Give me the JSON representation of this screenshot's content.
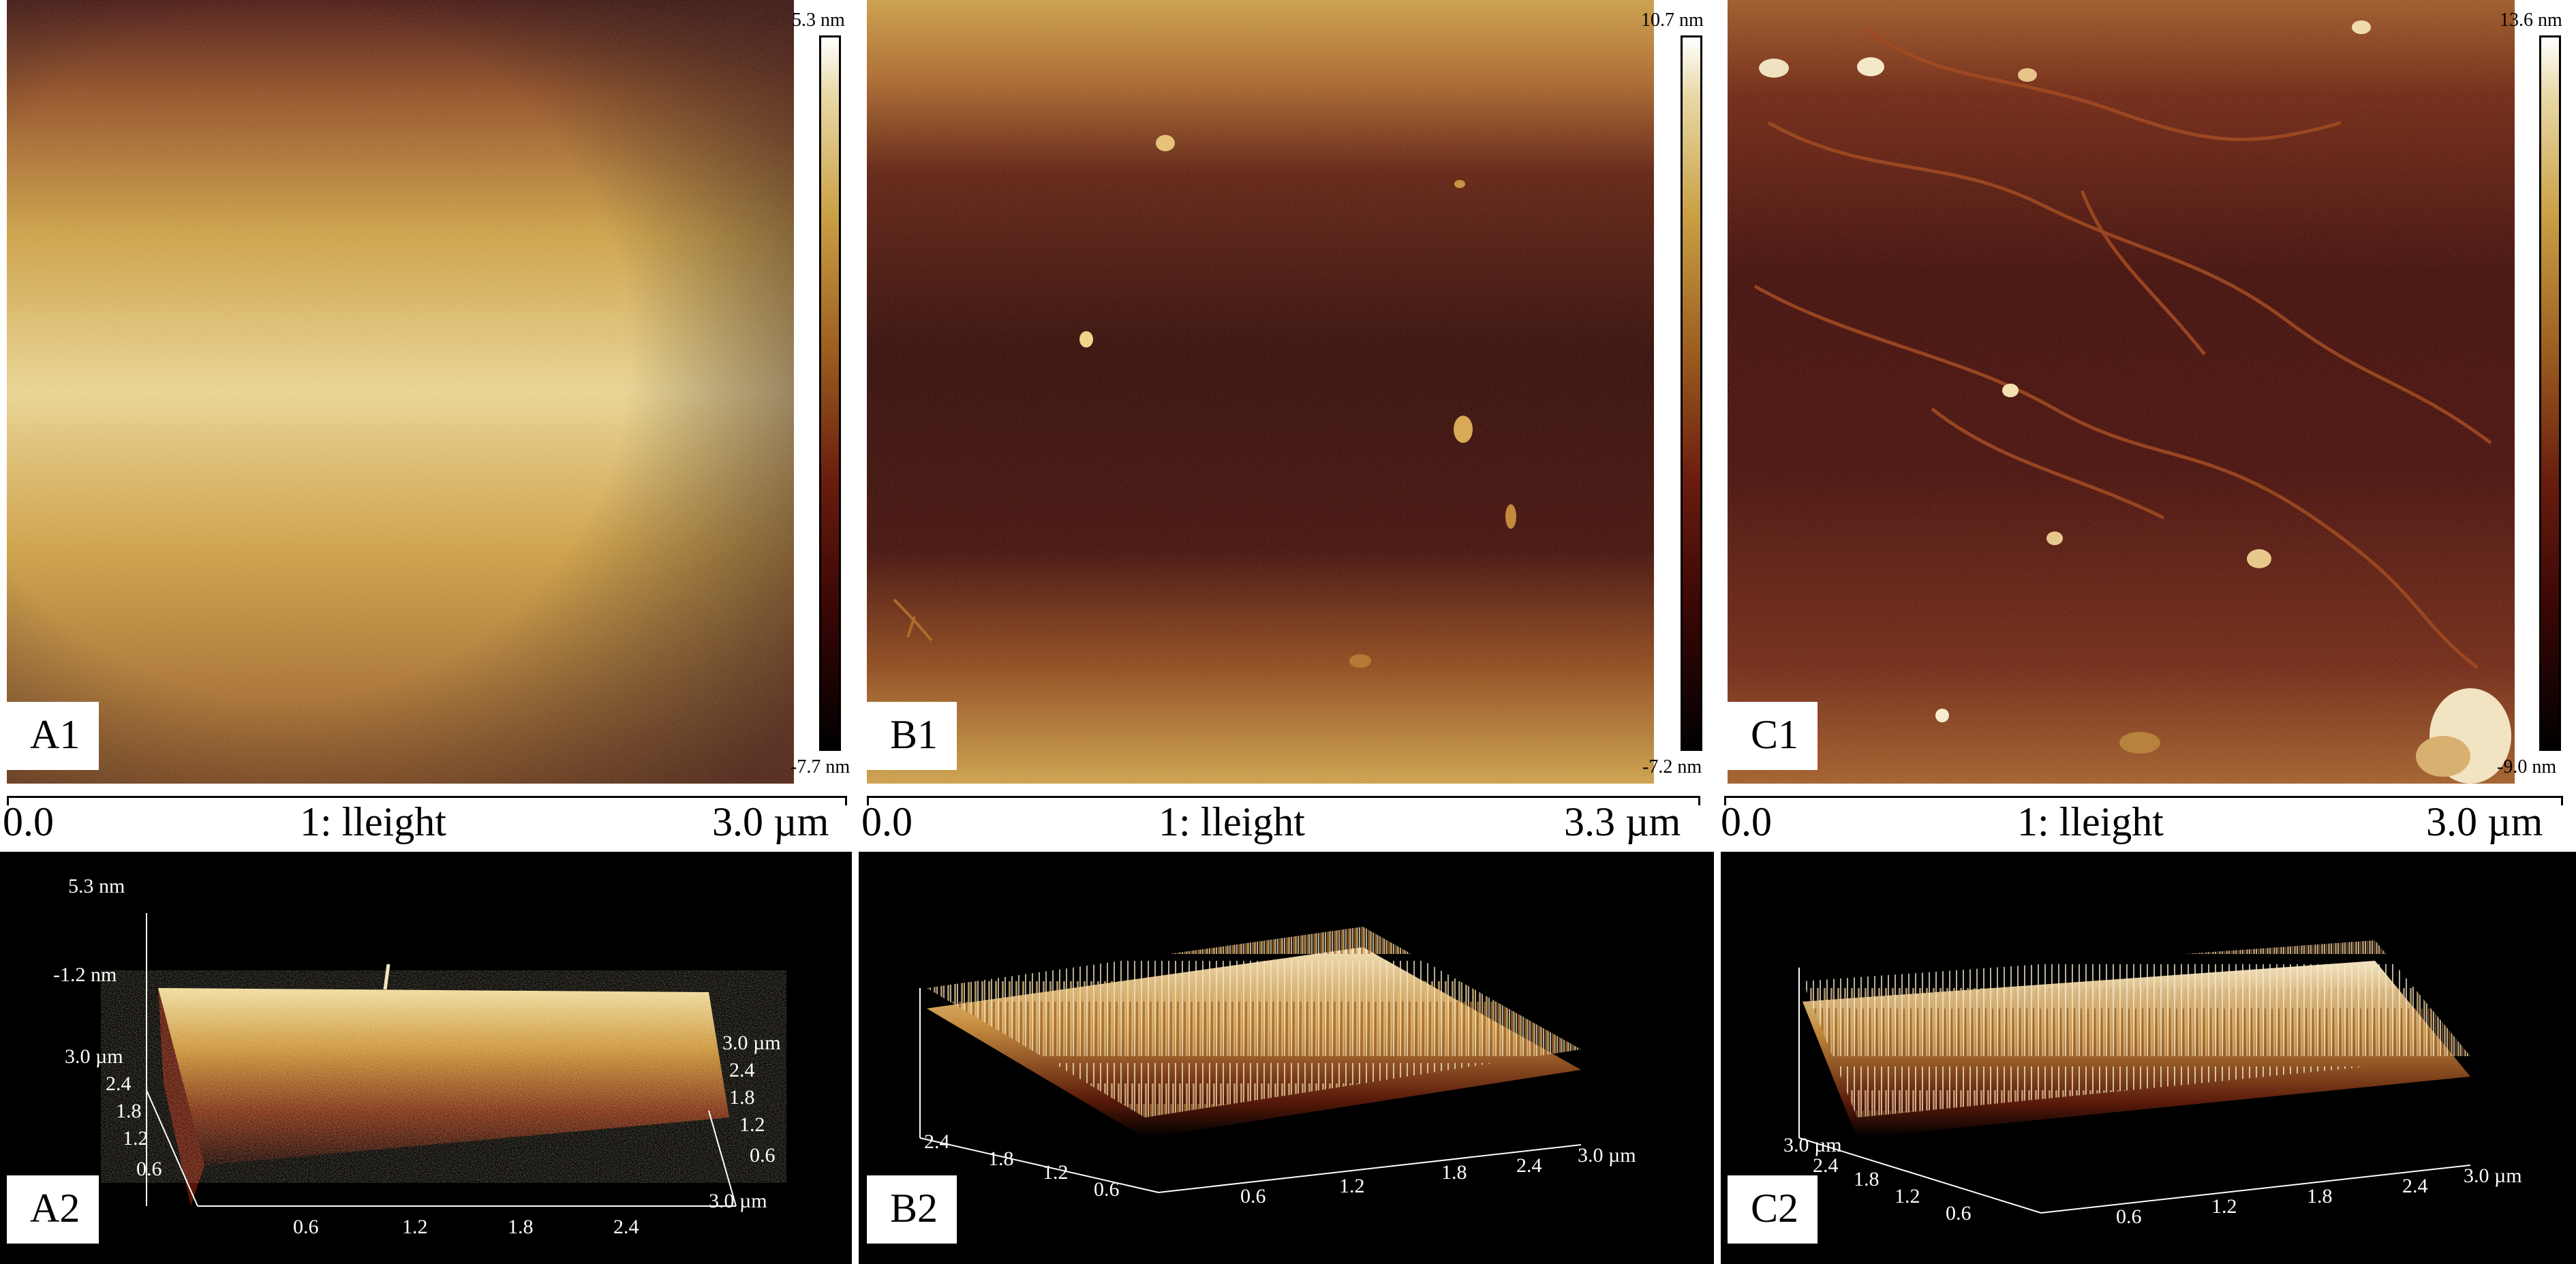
{
  "panels": {
    "A1": {
      "label": "A1",
      "scale_top": "5.3 nm",
      "scale_bottom": "-7.7 nm",
      "bar_start": "0.0",
      "bar_channel": "1: lleight",
      "bar_end": "3.0 µm"
    },
    "B1": {
      "label": "B1",
      "scale_top": "10.7 nm",
      "scale_bottom": "-7.2 nm",
      "bar_start": "0.0",
      "bar_channel": "1: lleight",
      "bar_end": "3.3 µm"
    },
    "C1": {
      "label": "C1",
      "scale_top": "13.6 nm",
      "scale_bottom": "-9.0 nm",
      "bar_start": "0.0",
      "bar_channel": "1: lleight",
      "bar_end": "3.0 µm"
    },
    "A2": {
      "label": "A2",
      "z_top": "5.3 nm",
      "z_mid": "-1.2 nm",
      "y_axis": [
        "3.0 µm",
        "2.4",
        "1.8",
        "1.2",
        "0.6"
      ],
      "x_axis": [
        "0.6",
        "1.2",
        "1.8",
        "2.4",
        "3.0 µm"
      ],
      "r_axis": [
        "3.0 µm",
        "2.4",
        "1.8",
        "1.2",
        "0.6"
      ]
    },
    "B2": {
      "label": "B2",
      "y_axis": [
        "2.4",
        "1.8",
        "1.2",
        "0.6"
      ],
      "x_axis": [
        "0.6",
        "1.2",
        "1.8",
        "2.4",
        "3.0 µm"
      ]
    },
    "C2": {
      "label": "C2",
      "y_axis": [
        "3.0 µm",
        "2.4",
        "1.8",
        "1.2",
        "0.6"
      ],
      "x_axis": [
        "0.6",
        "1.2",
        "1.8",
        "2.4",
        "3.0 µm"
      ]
    }
  },
  "colors": {
    "afm_high": "#ffffff",
    "afm_mid": "#c89a3c",
    "afm_low": "#3a0705",
    "afm_min": "#000000"
  }
}
